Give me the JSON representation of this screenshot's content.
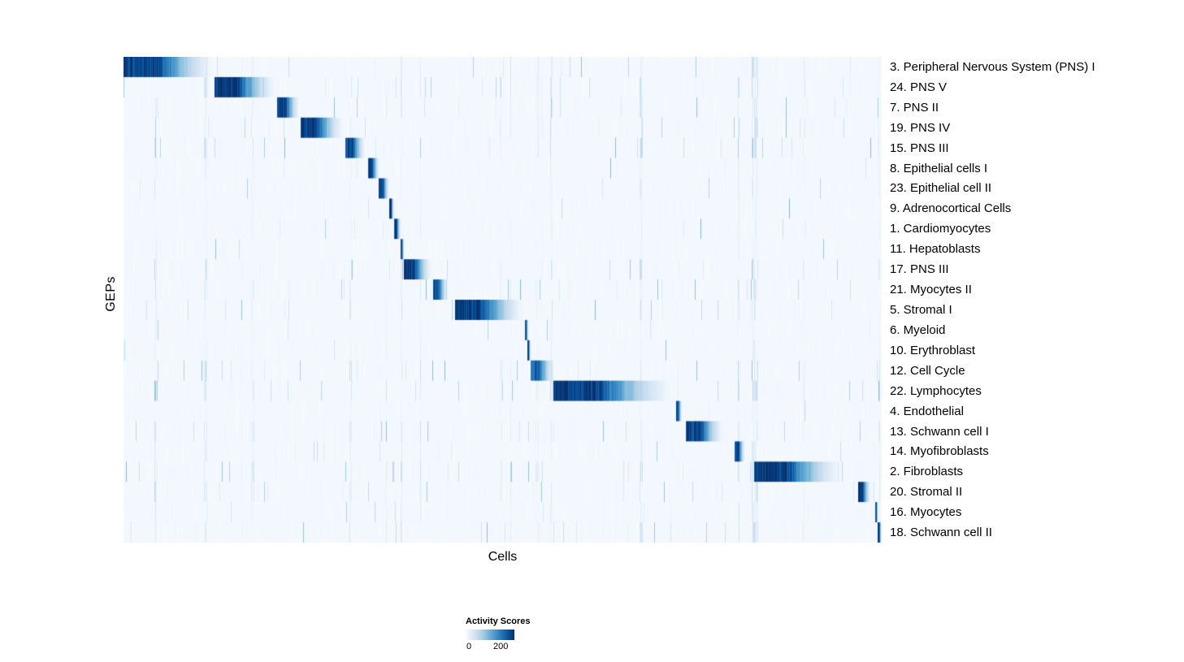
{
  "chart_data": {
    "type": "heatmap",
    "title": "",
    "xlabel": "Cells",
    "ylabel": "GEPs",
    "grid": false,
    "legend_position": "bottom",
    "colormap": "Blues",
    "colormap_stops": [
      "#f7fbff",
      "#deebf7",
      "#c6dbef",
      "#9ecae1",
      "#6baed6",
      "#4292c6",
      "#2171b5",
      "#08519c",
      "#08306b"
    ],
    "colorbar": {
      "title": "Activity Scores",
      "range": [
        0,
        200
      ],
      "min_label": "0",
      "max_label": "200"
    },
    "n_columns": 933,
    "value_peak": 200,
    "rows": [
      {
        "label": "3. Peripheral Nervous System (PNS) I",
        "block": [
          0.0,
          0.125
        ],
        "peak": 1.0,
        "noise": 0.5
      },
      {
        "label": "24. PNS V",
        "block": [
          0.12,
          0.205
        ],
        "peak": 1.0,
        "noise": 0.55
      },
      {
        "label": "7. PNS II",
        "block": [
          0.202,
          0.233
        ],
        "peak": 1.0,
        "noise": 0.45
      },
      {
        "label": "19. PNS IV",
        "block": [
          0.233,
          0.292
        ],
        "peak": 1.0,
        "noise": 0.6
      },
      {
        "label": "15. PNS III",
        "block": [
          0.292,
          0.32
        ],
        "peak": 0.95,
        "noise": 0.7
      },
      {
        "label": "8. Epithelial cells I",
        "block": [
          0.322,
          0.338
        ],
        "peak": 1.0,
        "noise": 0.25
      },
      {
        "label": "23. Epithelial cell II",
        "block": [
          0.336,
          0.351
        ],
        "peak": 1.0,
        "noise": 0.3
      },
      {
        "label": "9. Adrenocortical Cells",
        "block": [
          0.35,
          0.357
        ],
        "peak": 1.0,
        "noise": 0.2
      },
      {
        "label": "1. Cardiomyocytes",
        "block": [
          0.356,
          0.366
        ],
        "peak": 1.0,
        "noise": 0.25
      },
      {
        "label": "11. Hepatoblasts",
        "block": [
          0.365,
          0.37
        ],
        "peak": 1.0,
        "noise": 0.2
      },
      {
        "label": "17. PNS III",
        "block": [
          0.369,
          0.408
        ],
        "peak": 1.0,
        "noise": 0.65
      },
      {
        "label": "21. Myocytes II",
        "block": [
          0.408,
          0.428
        ],
        "peak": 0.95,
        "noise": 0.45
      },
      {
        "label": "5. Stromal I",
        "block": [
          0.437,
          0.532
        ],
        "peak": 1.0,
        "noise": 0.5
      },
      {
        "label": "6. Myeloid",
        "block": [
          0.529,
          0.534
        ],
        "peak": 1.0,
        "noise": 0.2
      },
      {
        "label": "10. Erythroblast",
        "block": [
          0.532,
          0.537
        ],
        "peak": 1.0,
        "noise": 0.25
      },
      {
        "label": "12. Cell Cycle",
        "block": [
          0.536,
          0.57
        ],
        "peak": 0.85,
        "noise": 0.75
      },
      {
        "label": "22. Lymphocytes",
        "block": [
          0.566,
          0.732
        ],
        "peak": 1.0,
        "noise": 0.7
      },
      {
        "label": "4. Endothelial",
        "block": [
          0.728,
          0.737
        ],
        "peak": 1.0,
        "noise": 0.25
      },
      {
        "label": "13. Schwann cell I",
        "block": [
          0.741,
          0.793
        ],
        "peak": 1.0,
        "noise": 0.5
      },
      {
        "label": "14. Myofibroblasts",
        "block": [
          0.806,
          0.82
        ],
        "peak": 1.0,
        "noise": 0.3
      },
      {
        "label": "2. Fibroblasts",
        "block": [
          0.831,
          0.953
        ],
        "peak": 1.0,
        "noise": 0.7
      },
      {
        "label": "20. Stromal II",
        "block": [
          0.968,
          0.986
        ],
        "peak": 1.0,
        "noise": 0.5
      },
      {
        "label": "16. Myocytes",
        "block": [
          0.991,
          0.995
        ],
        "peak": 1.0,
        "noise": 0.3
      },
      {
        "label": "18. Schwann cell II",
        "block": [
          0.994,
          1.0
        ],
        "peak": 1.0,
        "noise": 0.5
      }
    ]
  }
}
